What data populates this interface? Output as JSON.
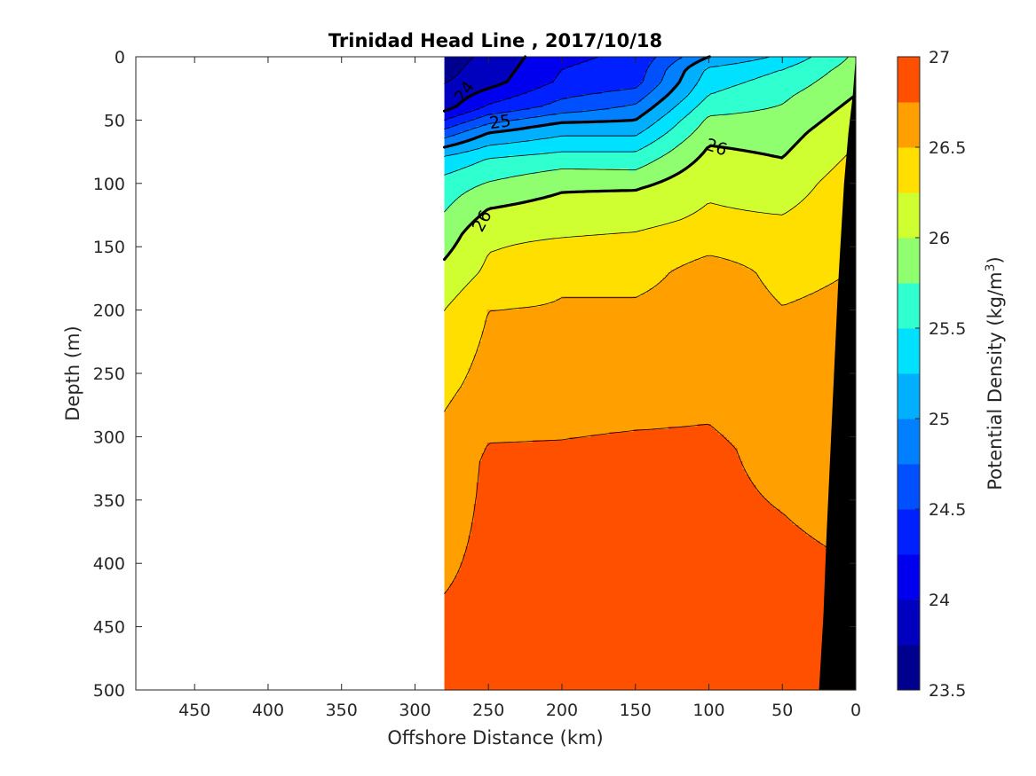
{
  "chart_data": {
    "type": "contour",
    "title": "Trinidad Head Line , 2017/10/18",
    "xlabel": "Offshore Distance (km)",
    "ylabel": "Depth (m)",
    "xlim": [
      490,
      0
    ],
    "ylim": [
      500,
      0
    ],
    "x_ticks": [
      450,
      400,
      350,
      300,
      250,
      200,
      150,
      100,
      50,
      0
    ],
    "y_ticks": [
      0,
      50,
      100,
      150,
      200,
      250,
      300,
      350,
      400,
      450,
      500
    ],
    "colorbar": {
      "label_prefix": "Potential Density (kg/m",
      "label_sup": "3",
      "label_suffix": ")",
      "range": [
        23.5,
        27
      ],
      "ticks": [
        "23.5",
        "24",
        "24.5",
        "25",
        "25.5",
        "26",
        "26.5",
        "27"
      ],
      "levels": [
        23.5,
        23.75,
        24.0,
        24.25,
        24.5,
        24.75,
        25.0,
        25.25,
        25.5,
        25.75,
        26.0,
        26.25,
        26.5,
        26.75,
        27.0
      ],
      "colors": [
        "#00008f",
        "#0000bf",
        "#0000ef",
        "#0020ff",
        "#0050ff",
        "#0080ff",
        "#00b0ff",
        "#00e0ff",
        "#30ffcf",
        "#8fff70",
        "#cfff30",
        "#ffdf00",
        "#ffa000",
        "#ff5000",
        "#ff1000",
        "#bf0000"
      ]
    },
    "data_extent_x_km": [
      280,
      0
    ],
    "contour_labels": [
      {
        "text": "24",
        "x": 266,
        "y": 28,
        "angle": -55
      },
      {
        "text": "25",
        "x": 242,
        "y": 52,
        "angle": -8
      },
      {
        "text": "26",
        "x": 95,
        "y": 72,
        "angle": 18
      },
      {
        "text": "26",
        "x": 254,
        "y": 130,
        "angle": -62
      }
    ],
    "bathymetry": {
      "color": "#000000",
      "x": [
        0,
        2,
        5,
        8,
        12,
        16,
        20,
        22,
        25,
        0
      ],
      "y": [
        0,
        30,
        60,
        100,
        180,
        280,
        380,
        440,
        500,
        500
      ]
    }
  }
}
